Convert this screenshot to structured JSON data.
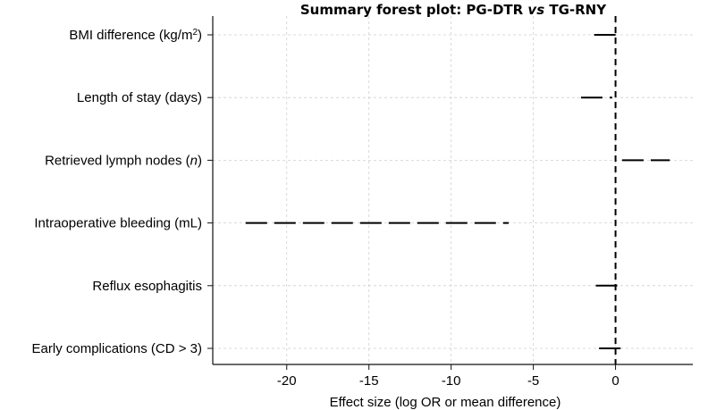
{
  "chart_data": {
    "type": "forest",
    "title": "Summary forest plot: PG-DTR vs TG-RNY",
    "title_parts": [
      {
        "text": "Summary forest plot: PG-DTR ",
        "italic": false
      },
      {
        "text": "vs",
        "italic": true
      },
      {
        "text": " TG-RNY",
        "italic": false
      }
    ],
    "xlabel": "Effect size (log OR or mean difference)",
    "xlim": [
      -24.5,
      4.7
    ],
    "xticks": [
      -20,
      -15,
      -10,
      -5,
      0
    ],
    "xtick_labels": [
      "-20",
      "-15",
      "-10",
      "-5",
      "0"
    ],
    "reference_line": 0,
    "grid": true,
    "rows": [
      {
        "label": "BMI difference (kg/m²)",
        "label_parts": [
          {
            "text": "BMI difference (kg/m"
          },
          {
            "text": "2",
            "sup": true
          },
          {
            "text": ")"
          }
        ],
        "lower": -1.3,
        "upper": 0.0
      },
      {
        "label": "Length of stay (days)",
        "label_parts": [
          {
            "text": "Length of stay (days)"
          }
        ],
        "lower": -2.1,
        "upper": -0.2
      },
      {
        "label": "Retrieved lymph nodes (n)",
        "label_parts": [
          {
            "text": "Retrieved lymph nodes ("
          },
          {
            "text": "n",
            "italic": true
          },
          {
            "text": ")"
          }
        ],
        "lower": 0.4,
        "upper": 3.3
      },
      {
        "label": "Intraoperative bleeding (mL)",
        "label_parts": [
          {
            "text": "Intraoperative bleeding (mL)"
          }
        ],
        "lower": -22.5,
        "upper": -6.5
      },
      {
        "label": "Reflux esophagitis",
        "label_parts": [
          {
            "text": "Reflux esophagitis"
          }
        ],
        "lower": -1.2,
        "upper": 0.2
      },
      {
        "label": "Early complications (CD > 3)",
        "label_parts": [
          {
            "text": "Early complications (CD > 3)"
          }
        ],
        "lower": -1.0,
        "upper": 0.5
      }
    ]
  }
}
